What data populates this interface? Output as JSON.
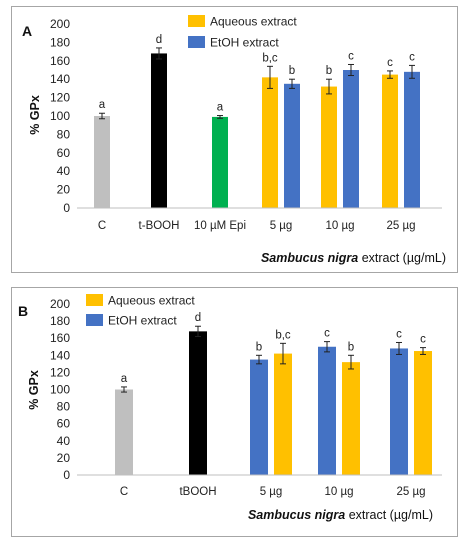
{
  "chart_data": [
    {
      "type": "bar",
      "panel": "A",
      "ylabel": "% GPx",
      "xlabel_italic": "Sambucus nigra",
      "xlabel_rest": " extract (µg/mL)",
      "ylim": [
        0,
        200
      ],
      "yticks": [
        0,
        20,
        40,
        60,
        80,
        100,
        120,
        140,
        160,
        180,
        200
      ],
      "legend": [
        {
          "name": "Aqueous extract",
          "color": "#ffc000"
        },
        {
          "name": "EtOH extract",
          "color": "#4472c4"
        }
      ],
      "legend_position": "top-center",
      "categories": [
        {
          "label": "C",
          "bars": [
            {
              "value": 100,
              "err": 3,
              "sig": "a",
              "color": "#bfbfbf"
            }
          ]
        },
        {
          "label": "t-BOOH",
          "bars": [
            {
              "value": 168,
              "err": 6,
              "sig": "d",
              "color": "#000000"
            }
          ]
        },
        {
          "label": "10 µM Epi",
          "bars": [
            {
              "value": 99,
              "err": 1.5,
              "sig": "a",
              "color": "#00b050"
            }
          ]
        },
        {
          "label": "5 µg",
          "bars": [
            {
              "value": 142,
              "err": 12,
              "sig": "b,c",
              "color": "#ffc000"
            },
            {
              "value": 135,
              "err": 5,
              "sig": "b",
              "color": "#4472c4"
            }
          ]
        },
        {
          "label": "10 µg",
          "bars": [
            {
              "value": 132,
              "err": 8,
              "sig": "b",
              "color": "#ffc000"
            },
            {
              "value": 150,
              "err": 6,
              "sig": "c",
              "color": "#4472c4"
            }
          ]
        },
        {
          "label": "25 µg",
          "bars": [
            {
              "value": 145,
              "err": 4,
              "sig": "c",
              "color": "#ffc000"
            },
            {
              "value": 148,
              "err": 7,
              "sig": "c",
              "color": "#4472c4"
            }
          ]
        }
      ]
    },
    {
      "type": "bar",
      "panel": "B",
      "ylabel": "% GPx",
      "xlabel_italic": "Sambucus nigra",
      "xlabel_rest": " extract (µg/mL)",
      "ylim": [
        0,
        200
      ],
      "yticks": [
        0,
        20,
        40,
        60,
        80,
        100,
        120,
        140,
        160,
        180,
        200
      ],
      "legend": [
        {
          "name": "Aqueous extract",
          "color": "#ffc000"
        },
        {
          "name": "EtOH extract",
          "color": "#4472c4"
        }
      ],
      "legend_position": "top-left",
      "categories": [
        {
          "label": "C",
          "bars": [
            {
              "value": 100,
              "err": 3,
              "sig": "a",
              "color": "#bfbfbf"
            }
          ]
        },
        {
          "label": "tBOOH",
          "bars": [
            {
              "value": 168,
              "err": 6,
              "sig": "d",
              "color": "#000000"
            }
          ]
        },
        {
          "label": "5 µg",
          "bars": [
            {
              "value": 135,
              "err": 5,
              "sig": "b",
              "color": "#4472c4"
            },
            {
              "value": 142,
              "err": 12,
              "sig": "b,c",
              "color": "#ffc000"
            }
          ]
        },
        {
          "label": "10 µg",
          "bars": [
            {
              "value": 150,
              "err": 6,
              "sig": "c",
              "color": "#4472c4"
            },
            {
              "value": 132,
              "err": 8,
              "sig": "b",
              "color": "#ffc000"
            }
          ]
        },
        {
          "label": "25 µg",
          "bars": [
            {
              "value": 148,
              "err": 7,
              "sig": "c",
              "color": "#4472c4"
            },
            {
              "value": 145,
              "err": 4,
              "sig": "c",
              "color": "#ffc000"
            }
          ]
        }
      ]
    }
  ]
}
